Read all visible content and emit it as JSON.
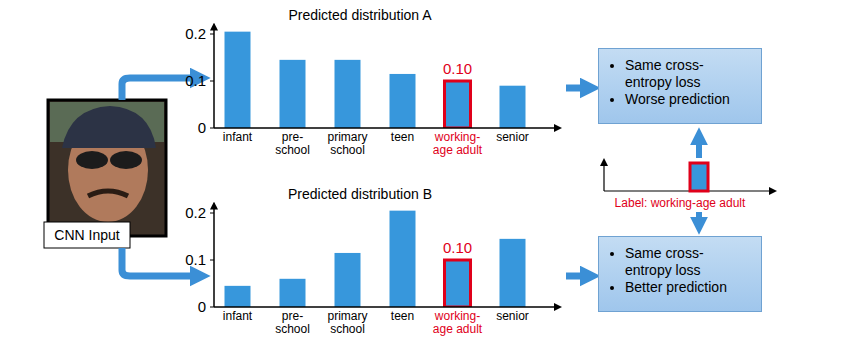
{
  "chart_data": [
    {
      "type": "bar",
      "title": "Predicted distribution A",
      "categories": [
        "infant",
        "pre-school",
        "primary school",
        "teen",
        "working-age adult",
        "senior"
      ],
      "values": [
        0.205,
        0.145,
        0.145,
        0.115,
        0.1,
        0.09
      ],
      "value_labels": [
        null,
        null,
        null,
        null,
        "0.10",
        null
      ],
      "color": "#3797dc",
      "ylim": [
        0,
        0.22
      ],
      "yticks": [
        0,
        0.1,
        0.2
      ]
    },
    {
      "type": "bar",
      "title": "Predicted distribution B",
      "categories": [
        "infant",
        "pre-school",
        "primary school",
        "teen",
        "working-age adult",
        "senior"
      ],
      "values": [
        0.045,
        0.06,
        0.115,
        0.205,
        0.1,
        0.145
      ],
      "value_labels": [
        null,
        null,
        null,
        null,
        "0.10",
        null
      ],
      "color": "#3797dc",
      "ylim": [
        0,
        0.22
      ],
      "yticks": [
        0,
        0.1,
        0.2
      ]
    }
  ],
  "input_label": "CNN Input",
  "label_caption": "Label: working-age adult",
  "boxes": [
    [
      "Same cross-entropy loss",
      "Worse prediction"
    ],
    [
      "Same cross-entropy loss",
      "Better prediction"
    ]
  ]
}
